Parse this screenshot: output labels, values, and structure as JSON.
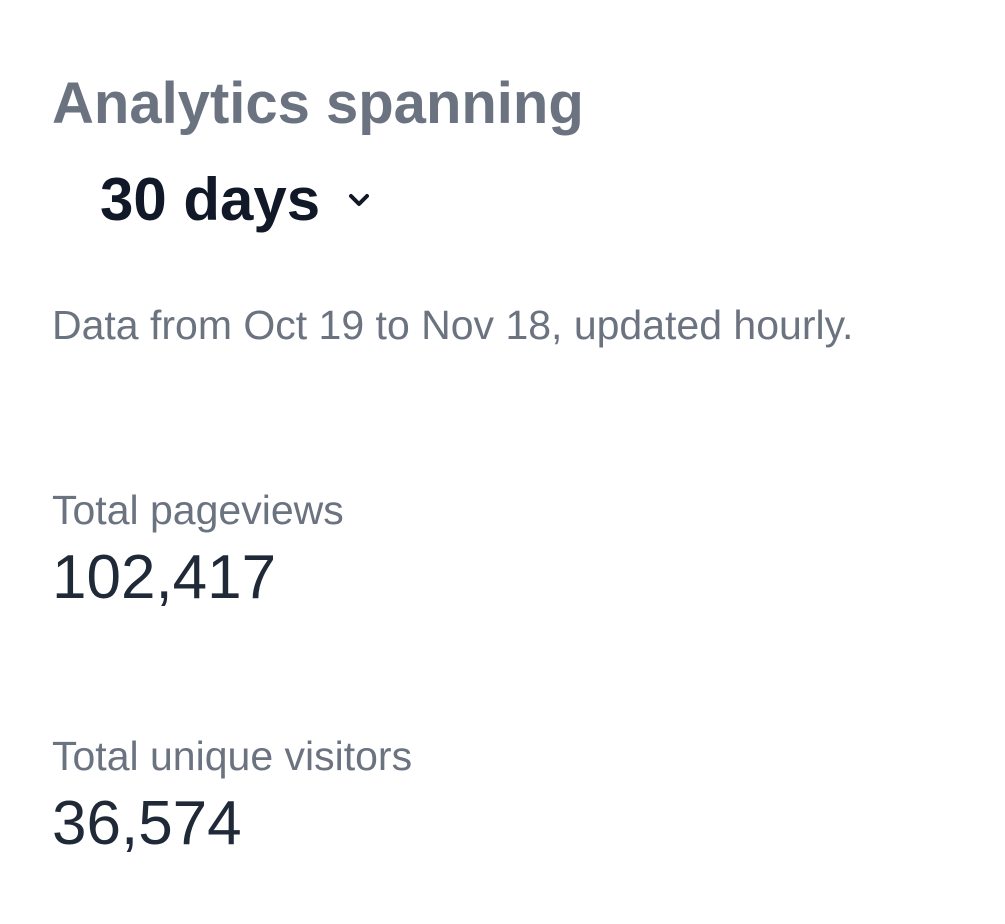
{
  "header": {
    "title": "Analytics spanning",
    "range": "30 days",
    "description": "Data from Oct 19 to Nov 18, updated hourly."
  },
  "stats": [
    {
      "label": "Total pageviews",
      "value": "102,417"
    },
    {
      "label": "Total unique visitors",
      "value": "36,574"
    }
  ]
}
